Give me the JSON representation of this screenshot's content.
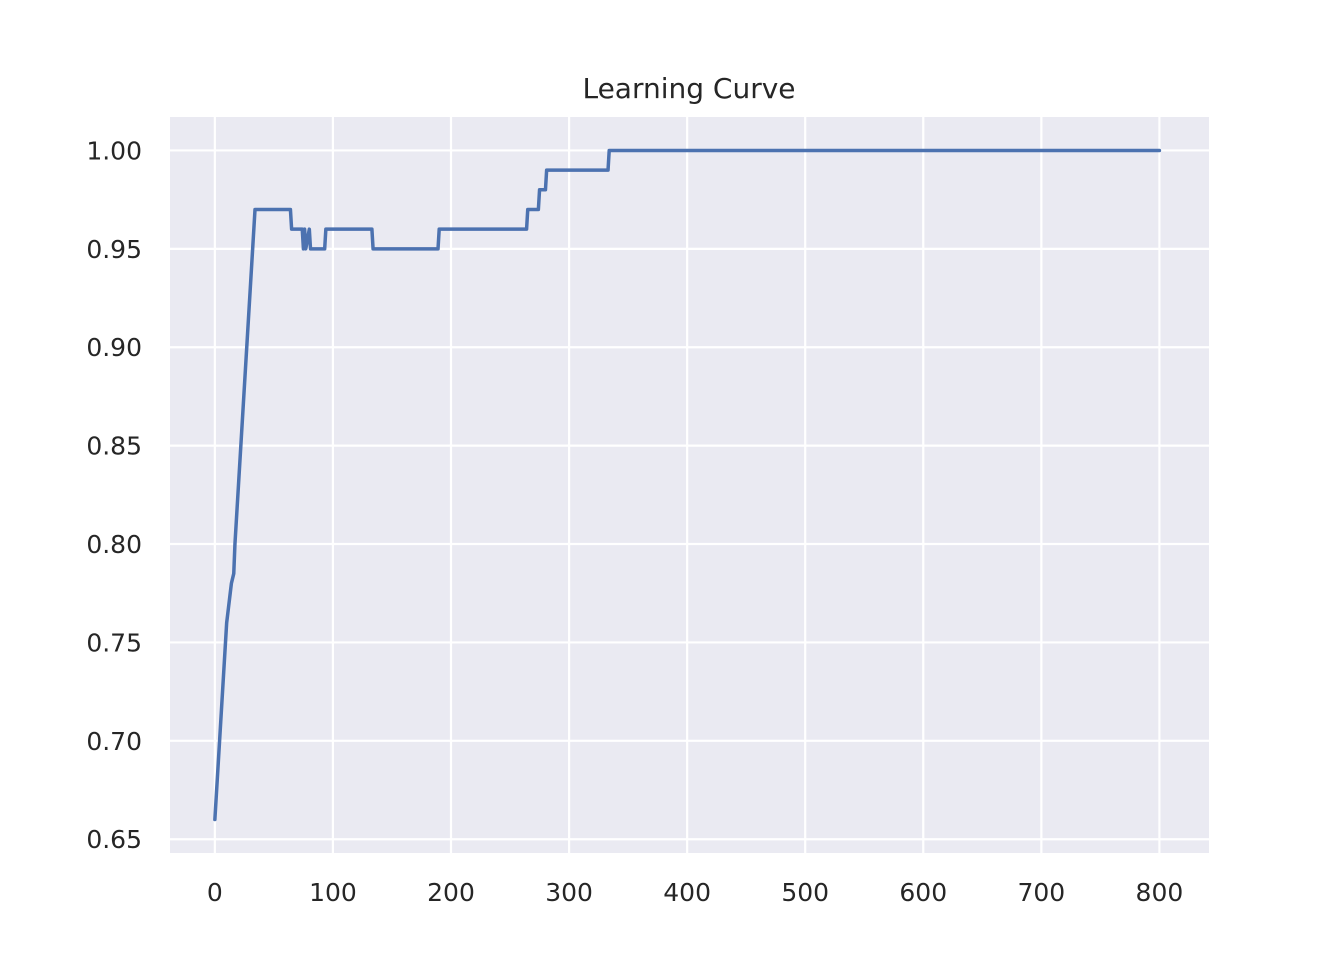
{
  "colors": {
    "plot_background": "#eaeaf2",
    "grid": "#ffffff",
    "line": "#4c72b0",
    "text": "#262626"
  },
  "chart_data": {
    "type": "line",
    "title": "Learning Curve",
    "xlabel": "",
    "ylabel": "",
    "xlim": [
      -38,
      842
    ],
    "ylim": [
      0.643,
      1.017
    ],
    "xticks": [
      0,
      100,
      200,
      300,
      400,
      500,
      600,
      700,
      800
    ],
    "xtick_labels": [
      "0",
      "100",
      "200",
      "300",
      "400",
      "500",
      "600",
      "700",
      "800"
    ],
    "yticks": [
      0.65,
      0.7,
      0.75,
      0.8,
      0.85,
      0.9,
      0.95,
      1.0
    ],
    "ytick_labels": [
      "0.65",
      "0.70",
      "0.75",
      "0.80",
      "0.85",
      "0.90",
      "0.95",
      "1.00"
    ],
    "grid": true,
    "legend": "none",
    "series": [
      {
        "x": [
          0,
          10,
          11,
          13,
          14,
          16,
          17,
          19,
          20,
          34,
          35,
          64,
          65,
          74,
          75,
          76,
          77,
          80,
          81,
          93,
          94,
          133,
          134,
          189,
          190,
          264,
          265,
          274,
          275,
          280,
          281,
          333,
          334,
          800
        ],
        "y": [
          0.66,
          0.76,
          0.765,
          0.775,
          0.78,
          0.785,
          0.8,
          0.82,
          0.83,
          0.97,
          0.97,
          0.97,
          0.96,
          0.96,
          0.95,
          0.96,
          0.95,
          0.96,
          0.95,
          0.95,
          0.96,
          0.96,
          0.95,
          0.95,
          0.96,
          0.96,
          0.97,
          0.97,
          0.98,
          0.98,
          0.99,
          0.99,
          1.0,
          1.0
        ]
      }
    ]
  }
}
